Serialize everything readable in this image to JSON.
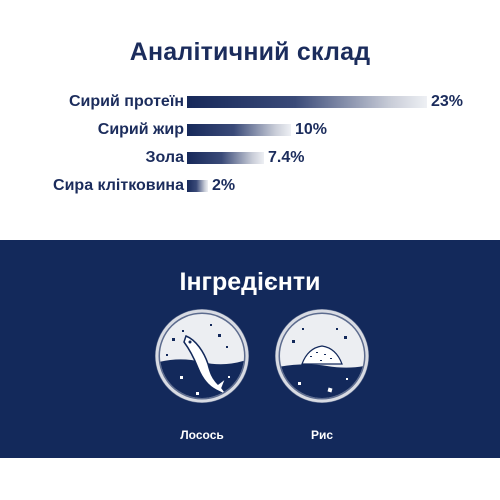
{
  "analysis": {
    "title": "Аналітичний склад",
    "rows": [
      {
        "label": "Сирий протеїн",
        "value": "23%",
        "amount": 23
      },
      {
        "label": "Сирий жир",
        "value": "10%",
        "amount": 10
      },
      {
        "label": "Зола",
        "value": "7.4%",
        "amount": 7.4
      },
      {
        "label": "Сира клітковина",
        "value": "2%",
        "amount": 2
      }
    ]
  },
  "ingredients": {
    "title": "Інгредієнти",
    "items": [
      {
        "name": "Лосось",
        "icon": "salmon-icon"
      },
      {
        "name": "Рис",
        "icon": "rice-icon"
      }
    ]
  },
  "colors": {
    "navy": "#13295b",
    "text": "#1b2c5c"
  }
}
